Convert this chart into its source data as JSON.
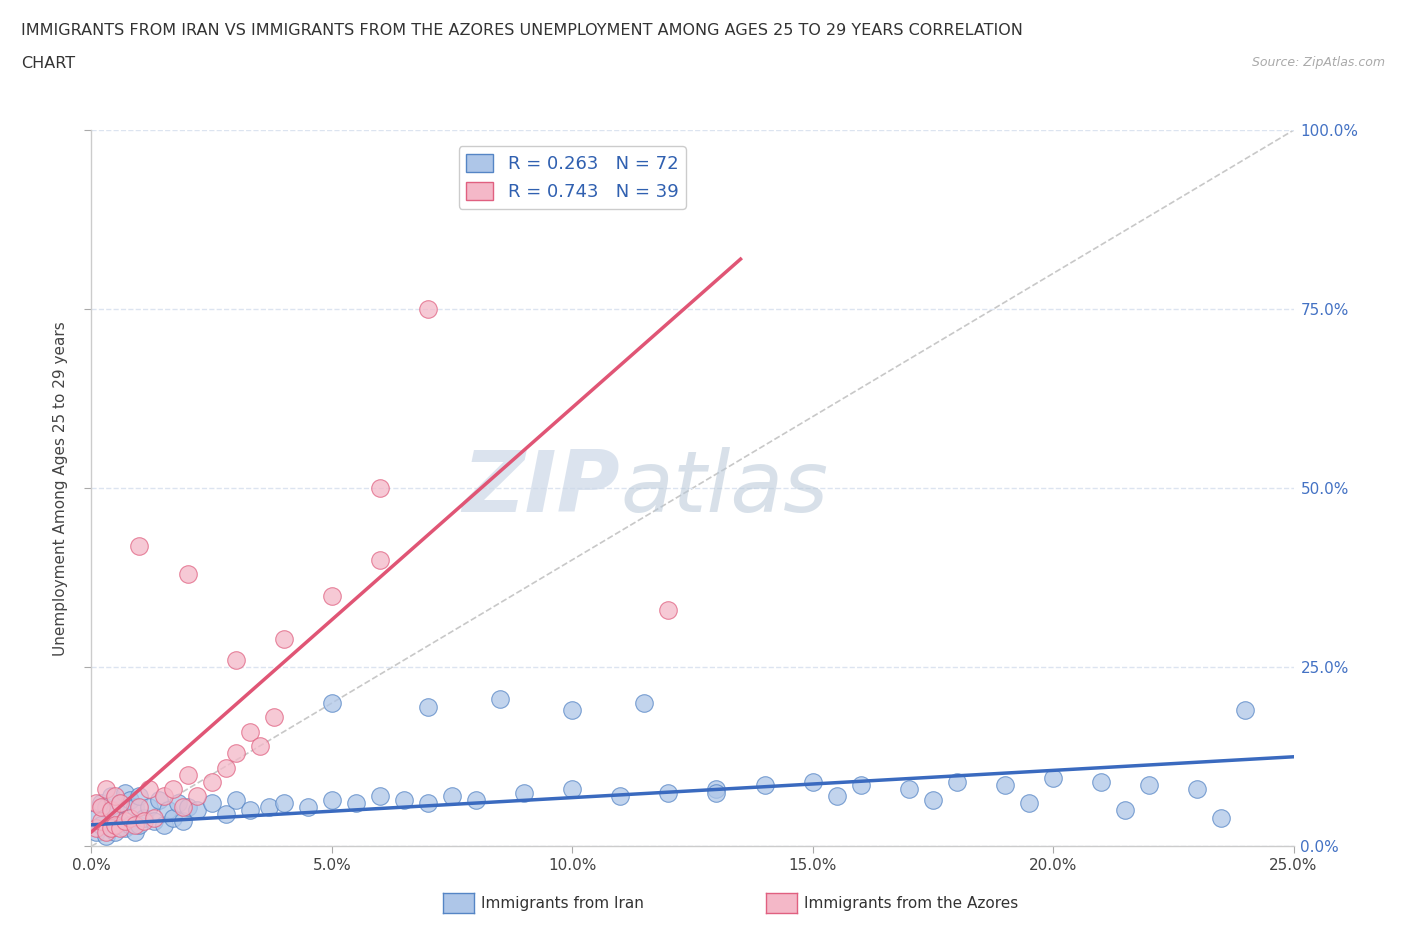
{
  "title_line1": "IMMIGRANTS FROM IRAN VS IMMIGRANTS FROM THE AZORES UNEMPLOYMENT AMONG AGES 25 TO 29 YEARS CORRELATION",
  "title_line2": "CHART",
  "source_text": "Source: ZipAtlas.com",
  "ylabel": "Unemployment Among Ages 25 to 29 years",
  "xlim": [
    0.0,
    0.25
  ],
  "ylim": [
    0.0,
    1.0
  ],
  "xticks": [
    0.0,
    0.05,
    0.1,
    0.15,
    0.2,
    0.25
  ],
  "yticks": [
    0.0,
    0.25,
    0.5,
    0.75,
    1.0
  ],
  "iran_R": 0.263,
  "iran_N": 72,
  "azores_R": 0.743,
  "azores_N": 39,
  "iran_color": "#aec6e8",
  "azores_color": "#f4b8c8",
  "iran_edge_color": "#5585c5",
  "azores_edge_color": "#e06080",
  "iran_line_color": "#3a6abf",
  "azores_line_color": "#e05575",
  "ref_line_color": "#c8c8c8",
  "background_color": "#ffffff",
  "grid_color": "#dce4f0",
  "watermark_color": "#ccd8e8",
  "iran_scatter_x": [
    0.001,
    0.001,
    0.002,
    0.002,
    0.003,
    0.003,
    0.004,
    0.004,
    0.005,
    0.005,
    0.006,
    0.006,
    0.007,
    0.007,
    0.008,
    0.008,
    0.009,
    0.009,
    0.01,
    0.01,
    0.011,
    0.012,
    0.013,
    0.014,
    0.015,
    0.016,
    0.017,
    0.018,
    0.019,
    0.02,
    0.022,
    0.025,
    0.028,
    0.03,
    0.033,
    0.037,
    0.04,
    0.045,
    0.05,
    0.055,
    0.06,
    0.065,
    0.07,
    0.075,
    0.08,
    0.09,
    0.1,
    0.11,
    0.12,
    0.13,
    0.14,
    0.15,
    0.16,
    0.17,
    0.18,
    0.19,
    0.2,
    0.21,
    0.22,
    0.23,
    0.24,
    0.05,
    0.07,
    0.085,
    0.1,
    0.115,
    0.13,
    0.155,
    0.175,
    0.195,
    0.215,
    0.235
  ],
  "iran_scatter_y": [
    0.02,
    0.04,
    0.03,
    0.06,
    0.015,
    0.055,
    0.025,
    0.07,
    0.02,
    0.05,
    0.035,
    0.06,
    0.025,
    0.075,
    0.03,
    0.065,
    0.02,
    0.055,
    0.03,
    0.07,
    0.04,
    0.055,
    0.035,
    0.065,
    0.03,
    0.05,
    0.04,
    0.06,
    0.035,
    0.055,
    0.05,
    0.06,
    0.045,
    0.065,
    0.05,
    0.055,
    0.06,
    0.055,
    0.065,
    0.06,
    0.07,
    0.065,
    0.06,
    0.07,
    0.065,
    0.075,
    0.08,
    0.07,
    0.075,
    0.08,
    0.085,
    0.09,
    0.085,
    0.08,
    0.09,
    0.085,
    0.095,
    0.09,
    0.085,
    0.08,
    0.19,
    0.2,
    0.195,
    0.205,
    0.19,
    0.2,
    0.075,
    0.07,
    0.065,
    0.06,
    0.05,
    0.04
  ],
  "azores_scatter_x": [
    0.001,
    0.001,
    0.002,
    0.002,
    0.003,
    0.003,
    0.004,
    0.004,
    0.005,
    0.005,
    0.006,
    0.006,
    0.007,
    0.008,
    0.009,
    0.01,
    0.011,
    0.012,
    0.013,
    0.015,
    0.017,
    0.019,
    0.02,
    0.022,
    0.025,
    0.028,
    0.03,
    0.033,
    0.035,
    0.038,
    0.04,
    0.05,
    0.06,
    0.07,
    0.12,
    0.06,
    0.03,
    0.02,
    0.01
  ],
  "azores_scatter_y": [
    0.025,
    0.06,
    0.035,
    0.055,
    0.02,
    0.08,
    0.025,
    0.05,
    0.03,
    0.07,
    0.025,
    0.06,
    0.035,
    0.04,
    0.03,
    0.055,
    0.035,
    0.08,
    0.04,
    0.07,
    0.08,
    0.055,
    0.1,
    0.07,
    0.09,
    0.11,
    0.13,
    0.16,
    0.14,
    0.18,
    0.29,
    0.35,
    0.4,
    0.75,
    0.33,
    0.5,
    0.26,
    0.38,
    0.42
  ],
  "iran_trend_x": [
    0.0,
    0.25
  ],
  "iran_trend_y": [
    0.03,
    0.125
  ],
  "azores_trend_x": [
    0.0,
    0.135
  ],
  "azores_trend_y": [
    0.02,
    0.82
  ],
  "ref_line_x": [
    0.0,
    0.25
  ],
  "ref_line_y": [
    0.0,
    1.0
  ]
}
